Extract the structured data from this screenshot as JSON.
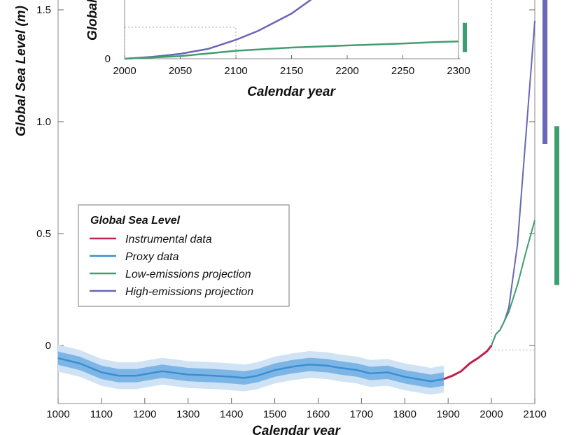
{
  "chart_data": [
    {
      "type": "line",
      "xlabel": "Calendar year",
      "ylabel": "Global Sea Level (m)",
      "xlim": [
        1000,
        2100
      ],
      "ylim": [
        -0.26,
        1.55
      ],
      "xticks": [
        "1000",
        "1100",
        "1200",
        "1300",
        "1400",
        "1500",
        "1600",
        "1700",
        "1800",
        "1900",
        "2000",
        "2100"
      ],
      "yticks": [
        "0",
        "0.5",
        "1.0",
        "1.5"
      ],
      "grid": false,
      "legend": {
        "title": "Global Sea Level",
        "placement": "center-left",
        "items": [
          "Instrumental data",
          "Proxy data",
          "Low-emissions projection",
          "High-emissions projection"
        ]
      },
      "colors": {
        "instrumental": "#c0224a",
        "proxy": "#3a8fd0",
        "proxy_band_inner": "#7db6e6",
        "proxy_band_outer": "#cfe3f5",
        "low": "#3f9e6f",
        "high": "#6a66b8"
      },
      "series": [
        {
          "name": "Proxy data",
          "x": [
            1000,
            1050,
            1100,
            1140,
            1180,
            1240,
            1300,
            1360,
            1400,
            1430,
            1460,
            1500,
            1540,
            1580,
            1620,
            1650,
            1690,
            1720,
            1760,
            1800,
            1830,
            1860,
            1890
          ],
          "y": [
            -0.057,
            -0.08,
            -0.12,
            -0.135,
            -0.135,
            -0.115,
            -0.13,
            -0.135,
            -0.14,
            -0.145,
            -0.135,
            -0.11,
            -0.095,
            -0.085,
            -0.09,
            -0.1,
            -0.11,
            -0.125,
            -0.12,
            -0.14,
            -0.15,
            -0.16,
            -0.15
          ],
          "band_inner": 0.03,
          "band_outer": 0.06
        },
        {
          "name": "Instrumental data",
          "x": [
            1890,
            1910,
            1930,
            1950,
            1970,
            1990,
            2000
          ],
          "y": [
            -0.15,
            -0.135,
            -0.115,
            -0.08,
            -0.055,
            -0.025,
            0
          ]
        },
        {
          "name": "Low-emissions projection",
          "x": [
            2000,
            2010,
            2020,
            2030,
            2040,
            2060,
            2080,
            2100
          ],
          "y": [
            0,
            0.05,
            0.07,
            0.11,
            0.15,
            0.27,
            0.42,
            0.56
          ]
        },
        {
          "name": "High-emissions projection",
          "x": [
            2000,
            2010,
            2020,
            2030,
            2040,
            2060,
            2080,
            2100
          ],
          "y": [
            0,
            0.05,
            0.07,
            0.11,
            0.17,
            0.45,
            0.95,
            1.45
          ]
        }
      ],
      "ranges_2100": [
        {
          "series": "High-emissions projection",
          "low": 0.9,
          "high": 1.6
        },
        {
          "series": "Low-emissions projection",
          "low": 0.27,
          "high": 0.98
        }
      ]
    },
    {
      "type": "line",
      "xlabel": "Calendar year",
      "ylabel": "Global Sea Level (m)",
      "xlim": [
        2000,
        2300
      ],
      "xticks": [
        "2000",
        "2050",
        "2100",
        "2150",
        "2200",
        "2250",
        "2300"
      ],
      "yticks": [
        "0"
      ],
      "series": [
        {
          "name": "High-emissions projection",
          "x": [
            2000,
            2025,
            2050,
            2075,
            2100,
            2120,
            2150,
            2170
          ],
          "y": [
            0,
            0.15,
            0.37,
            0.74,
            1.42,
            2.1,
            3.4,
            4.6
          ]
        },
        {
          "name": "Low-emissions projection",
          "x": [
            2000,
            2050,
            2100,
            2150,
            2200,
            2250,
            2280,
            2300
          ],
          "y": [
            0,
            0.2,
            0.6,
            0.84,
            1.0,
            1.15,
            1.26,
            1.3
          ]
        }
      ],
      "ranges_2300": [
        {
          "series": "Low-emissions projection",
          "low": 0.5,
          "high": 2.7
        }
      ]
    }
  ]
}
